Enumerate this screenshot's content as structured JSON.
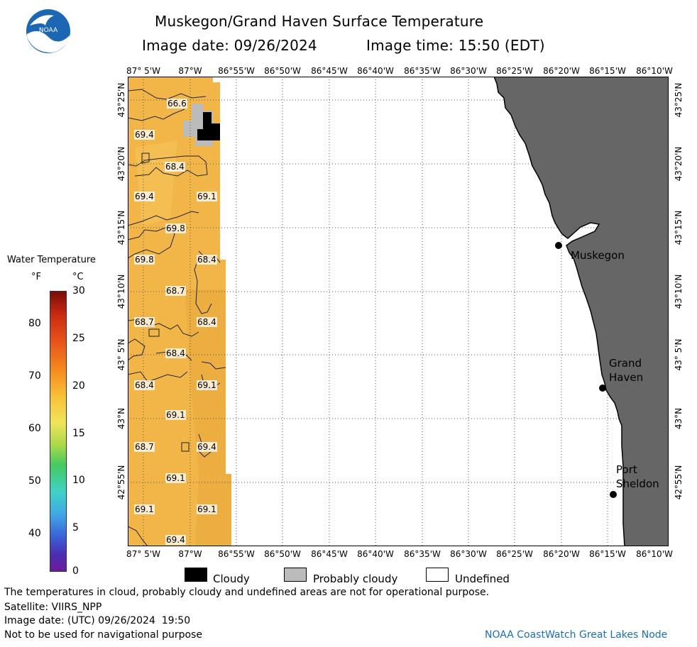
{
  "header": {
    "title": "Muskegon/Grand Haven Surface Temperature",
    "image_date": "Image date: 09/26/2024",
    "image_time": "Image time: 15:50 (EDT)",
    "logo_text": "NOAA"
  },
  "map": {
    "lon_labels": [
      "87° 5'W",
      "87°W",
      "86°55'W",
      "86°50'W",
      "86°45'W",
      "86°40'W",
      "86°35'W",
      "86°30'W",
      "86°25'W",
      "86°20'W",
      "86°15'W",
      "86°10'W"
    ],
    "lat_labels": [
      "43°25'N",
      "43°20'N",
      "43°15'N",
      "43°10'N",
      "43° 5'N",
      "43°N",
      "42°55'N"
    ],
    "colors": {
      "land": "#666666",
      "water_warm": "#f2b648",
      "cloud": "#000000",
      "probably_cloud": "#bbbbbb",
      "undefined": "#ffffff"
    },
    "temperature_labels": [
      "66.6",
      "69.4",
      "68.4",
      "69.4",
      "69.1",
      "69.8",
      "69.8",
      "68.4",
      "68.7",
      "68.7",
      "68.4",
      "68.4",
      "68.4",
      "69.1",
      "69.1",
      "68.7",
      "69.4",
      "69.1",
      "69.1",
      "69.1",
      "69.4"
    ],
    "cities": [
      {
        "name": "Muskegon"
      },
      {
        "name": "Grand\nHaven"
      },
      {
        "name": "Port\nSheldon"
      }
    ]
  },
  "colorbar": {
    "title": "Water Temperature",
    "unit_f": "°F",
    "unit_c": "°C",
    "f_ticks": [
      "80",
      "70",
      "60",
      "50",
      "40"
    ],
    "c_ticks": [
      "30",
      "25",
      "20",
      "15",
      "10",
      "5",
      "0"
    ]
  },
  "legend": {
    "cloudy": "Cloudy",
    "probably_cloudy": "Probably cloudy",
    "undefined": "Undefined"
  },
  "footer": {
    "disclaimer": "The temperatures in cloud, probably cloudy and undefined areas are not for operational purpose.",
    "satellite": "Satellite: VIIRS_NPP",
    "utc_date": "Image date: (UTC) 09/26/2024  19:50",
    "nav_warning": "Not to be used for navigational purpose",
    "credit": "NOAA CoastWatch Great Lakes Node"
  }
}
